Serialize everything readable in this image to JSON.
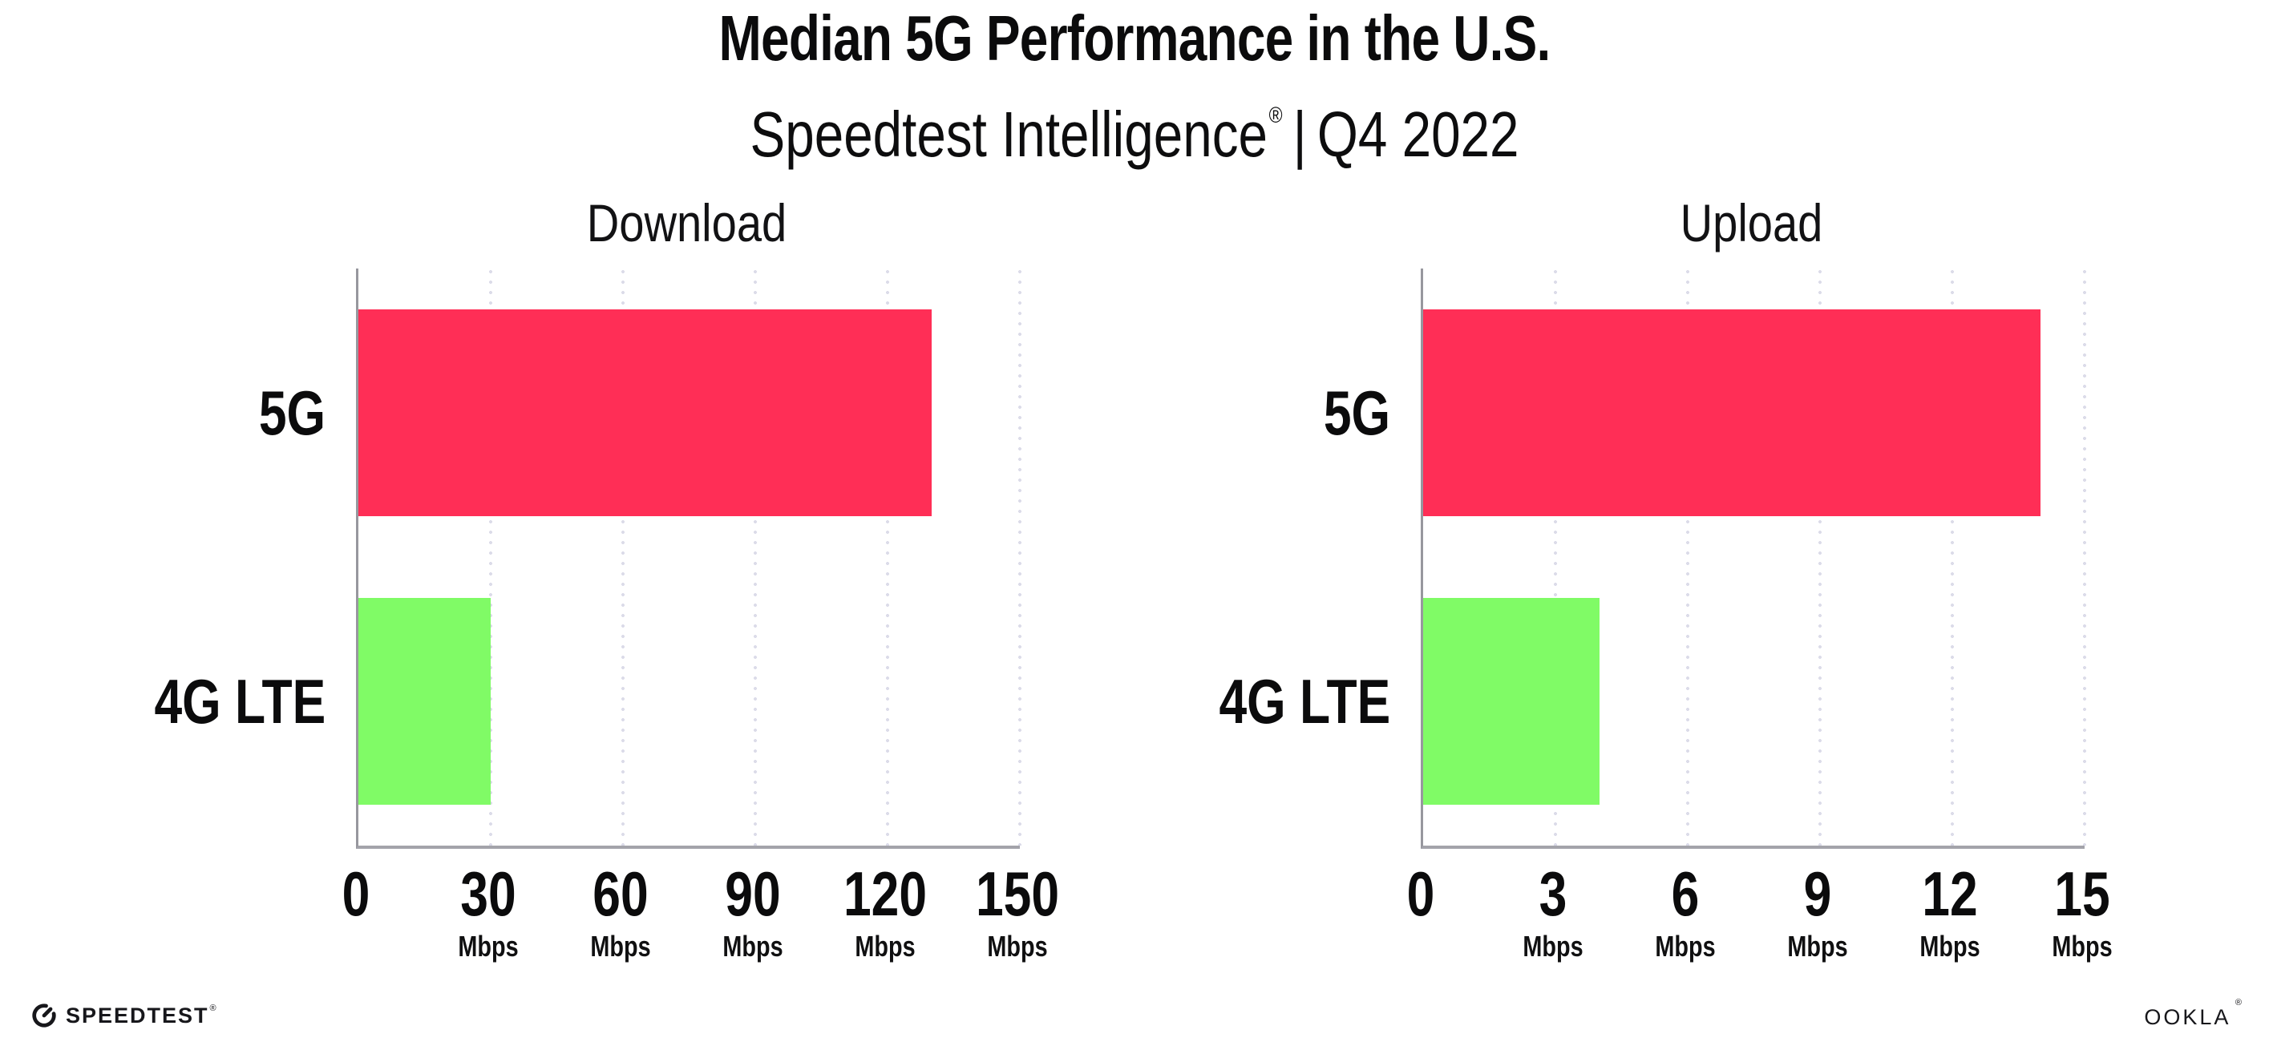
{
  "header": {
    "title": "Median 5G Performance in the U.S.",
    "subtitle": {
      "brand": "Speedtest Intelligence",
      "registered_mark": "®",
      "separator": "|",
      "period": "Q4 2022"
    }
  },
  "chart_data": [
    {
      "type": "bar",
      "orientation": "horizontal",
      "title": "Download",
      "categories": [
        "5G",
        "4G LTE"
      ],
      "values": [
        130,
        30
      ],
      "value_unit": "Mbps",
      "xlim": [
        0,
        150
      ],
      "xticks": [
        0,
        30,
        60,
        90,
        120,
        150
      ],
      "xtick_unit_label": "Mbps",
      "bar_colors": [
        "#ff2e56",
        "#80fb66"
      ],
      "grid": "vertical-dotted",
      "legend": "none"
    },
    {
      "type": "bar",
      "orientation": "horizontal",
      "title": "Upload",
      "categories": [
        "5G",
        "4G LTE"
      ],
      "values": [
        14,
        4
      ],
      "value_unit": "Mbps",
      "xlim": [
        0,
        15
      ],
      "xticks": [
        0,
        3,
        6,
        9,
        12,
        15
      ],
      "xtick_unit_label": "Mbps",
      "bar_colors": [
        "#ff2e56",
        "#80fb66"
      ],
      "grid": "vertical-dotted",
      "legend": "none"
    }
  ],
  "footer": {
    "speedtest_logo_text": "SPEEDTEST",
    "speedtest_registered_mark": "®",
    "ookla_logo_text": "OOKLA",
    "ookla_registered_mark": "®"
  },
  "colors": {
    "background": "#ffffff",
    "bar_5g": "#ff2e56",
    "bar_4g_lte": "#80fb66",
    "gridline": "#dcdce9",
    "axis_line": "#a3a3aa",
    "axis_line_vertical": "#97979e",
    "text": "#0b0b0c"
  }
}
